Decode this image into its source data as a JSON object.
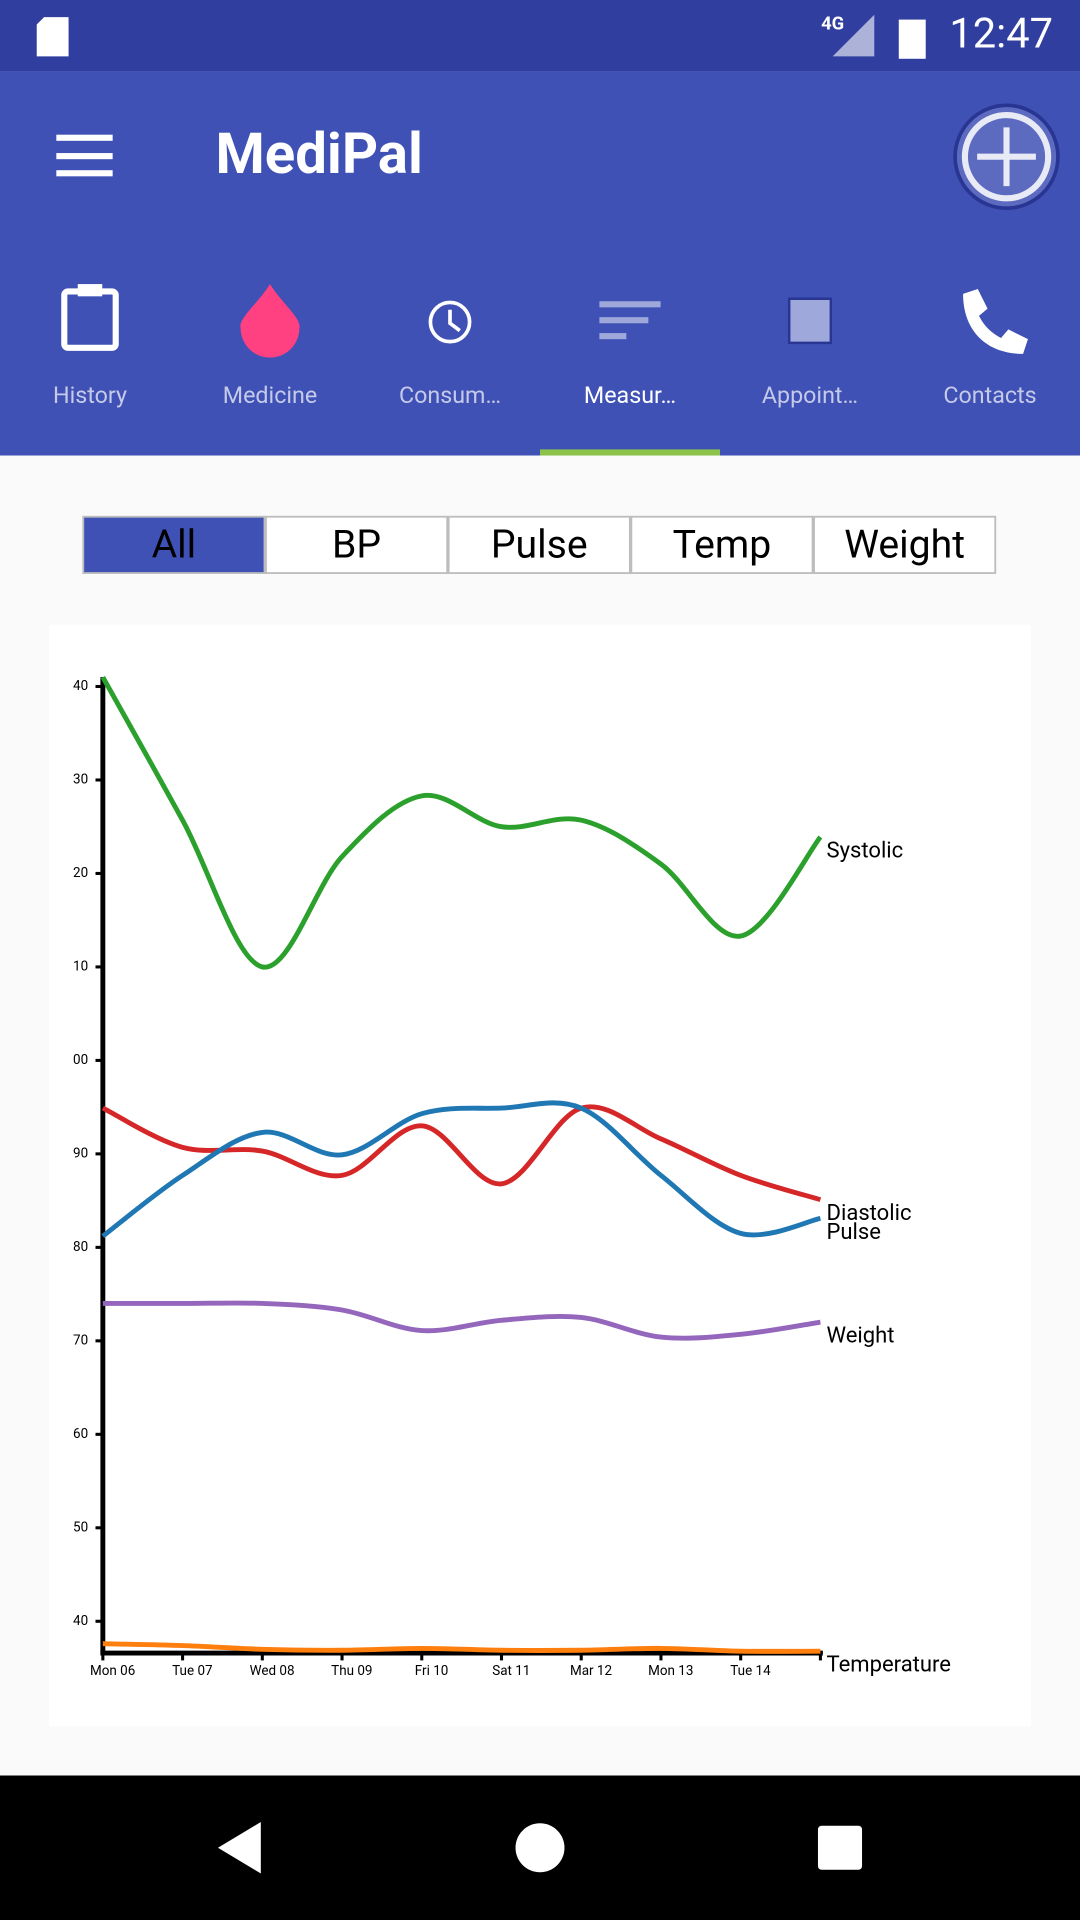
{
  "status": {
    "network": "4G",
    "time": "12:47"
  },
  "app": {
    "title": "MediPal"
  },
  "tabs": [
    "History",
    "Medicine",
    "Consum…",
    "Measur…",
    "Appoint…",
    "Contacts"
  ],
  "filters": [
    "All",
    "BP",
    "Pulse",
    "Temp",
    "Weight"
  ],
  "chart_data": {
    "type": "line",
    "categories": [
      "Mon 06",
      "Tue 07",
      "Wed 08",
      "Thu 09",
      "Fri 10",
      "Sat 11",
      "Mar 12",
      "Mon 13",
      "Tue 14",
      null
    ],
    "series": [
      {
        "name": "Systolic",
        "color": "#2ca02c",
        "values": [
          141,
          125.7,
          110,
          121.8,
          128.3,
          125,
          125.7,
          121,
          113.3,
          123.9
        ]
      },
      {
        "name": "Diastolic",
        "color": "#d62728",
        "values": [
          94.9,
          90.7,
          90.3,
          87.7,
          93,
          86.8,
          94.9,
          91.6,
          87.7,
          85.1
        ]
      },
      {
        "name": "Pulse",
        "color": "#1f77b4",
        "values": [
          81.2,
          87.7,
          92.3,
          89.9,
          94.3,
          94.9,
          94.9,
          87.7,
          81.5,
          83.1
        ]
      },
      {
        "name": "Weight",
        "color": "#9467bd",
        "values": [
          74,
          74,
          74,
          73.3,
          71.1,
          72.2,
          72.5,
          70.4,
          70.7,
          72
        ]
      },
      {
        "name": "Temperature",
        "color": "#ff7f0e",
        "values": [
          37.6,
          37.4,
          37.0,
          36.9,
          37.1,
          36.9,
          36.9,
          37.1,
          36.8,
          36.8
        ]
      }
    ],
    "ylim": [
      36.6,
      141
    ],
    "yticks": [
      {
        "value": 40,
        "label": "40"
      },
      50,
      60,
      70,
      80,
      90,
      {
        "value": 100,
        "label": "00"
      },
      {
        "value": 110,
        "label": "10"
      },
      {
        "value": 120,
        "label": "20"
      },
      {
        "value": 130,
        "label": "30"
      },
      {
        "value": 140,
        "label": "40"
      }
    ]
  }
}
